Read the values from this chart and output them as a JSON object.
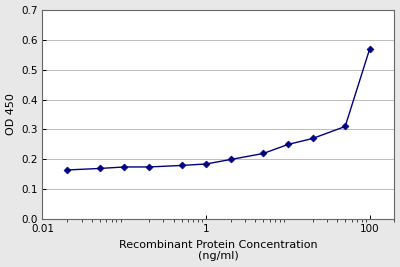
{
  "x": [
    0.02,
    0.05,
    0.1,
    0.2,
    0.5,
    1.0,
    2.0,
    5.0,
    10.0,
    20.0,
    50.0,
    100.0
  ],
  "y": [
    0.165,
    0.17,
    0.175,
    0.175,
    0.18,
    0.185,
    0.2,
    0.22,
    0.25,
    0.27,
    0.31,
    0.57
  ],
  "xlabel_line1": "Recombinant Protein Concentration",
  "xlabel_line2": "(ng/ml)",
  "ylabel": "OD 450",
  "ylim": [
    0.0,
    0.7
  ],
  "yticks": [
    0.0,
    0.1,
    0.2,
    0.3,
    0.4,
    0.5,
    0.6,
    0.7
  ],
  "xlim": [
    0.01,
    200
  ],
  "xticks": [
    0.01,
    1,
    100
  ],
  "xtick_labels": [
    "0.01",
    "1",
    "100"
  ],
  "line_color": "#000080",
  "marker_color": "#000080",
  "marker": "D",
  "marker_size": 3.5,
  "line_width": 1.0,
  "bg_color": "#e8e8e8",
  "plot_bg_color": "#ffffff",
  "label_fontsize": 8,
  "tick_fontsize": 7.5,
  "grid_color": "#bbbbbb"
}
